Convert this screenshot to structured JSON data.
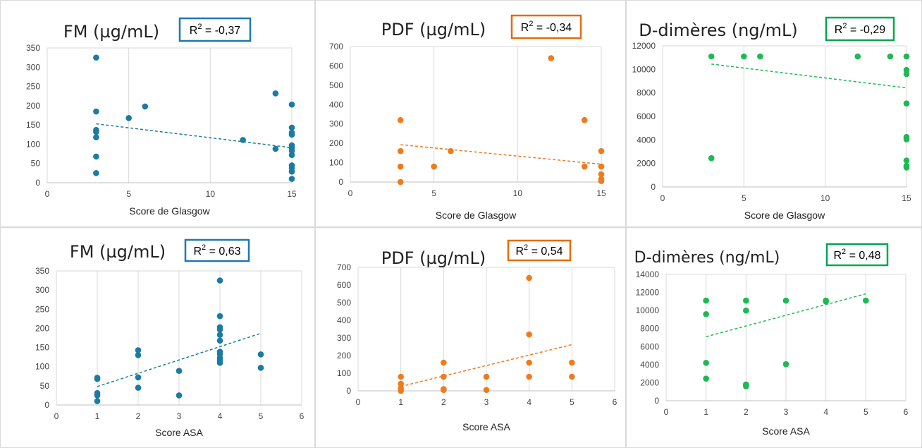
{
  "chart_data": [
    {
      "type": "scatter",
      "title": "FM (µg/mL)",
      "r2": {
        "base": "R",
        "sup": "2",
        "rest": " = -0,37",
        "color": "#1f77b4"
      },
      "xlabel": "Score de Glasgow",
      "ylabel": "",
      "xlim": [
        0,
        15
      ],
      "ylim": [
        0,
        350
      ],
      "xticks": [
        "0",
        "5",
        "10",
        "15"
      ],
      "yticks": [
        "0",
        "50",
        "100",
        "150",
        "200",
        "250",
        "300",
        "350"
      ],
      "gridlines": "vertical",
      "color": "#1a7ba3",
      "x": [
        3,
        3,
        3,
        3,
        3,
        3,
        3,
        5,
        6,
        12,
        14,
        14,
        15,
        15,
        15,
        15,
        15,
        15,
        15,
        15,
        15,
        15,
        15,
        15
      ],
      "y": [
        325,
        185,
        137,
        132,
        118,
        68,
        25,
        168,
        198,
        111,
        232,
        88,
        203,
        143,
        130,
        125,
        97,
        91,
        83,
        72,
        45,
        38,
        29,
        10
      ],
      "trendline": [
        [
          3,
          153
        ],
        [
          15,
          91
        ]
      ]
    },
    {
      "type": "scatter",
      "title": "PDF (µg/mL)",
      "r2": {
        "base": "R",
        "sup": "2",
        "rest": " = -0,34",
        "color": "#e46c0a"
      },
      "xlabel": "Score de Glasgow",
      "ylabel": "",
      "xlim": [
        0,
        15
      ],
      "ylim": [
        0,
        700
      ],
      "xticks": [
        "0",
        "5",
        "10",
        "15"
      ],
      "yticks": [
        "0",
        "100",
        "200",
        "300",
        "400",
        "500",
        "600",
        "700"
      ],
      "gridlines": "vertical",
      "color": "#f07a1c",
      "x": [
        3,
        3,
        3,
        3,
        5,
        6,
        12,
        14,
        14,
        15,
        15,
        15,
        15,
        15
      ],
      "y": [
        320,
        160,
        80,
        0,
        80,
        160,
        640,
        320,
        80,
        160,
        80,
        40,
        15,
        5
      ],
      "trendline": [
        [
          3,
          193
        ],
        [
          15,
          92
        ]
      ]
    },
    {
      "type": "scatter",
      "title": "D-dimères (ng/mL)",
      "r2": {
        "base": "R",
        "sup": "2",
        "rest": " = -0,29",
        "color": "#00a651"
      },
      "xlabel": "Score de Glasgow",
      "ylabel": "",
      "xlim": [
        0,
        15
      ],
      "ylim": [
        0,
        12000
      ],
      "xticks": [
        "0",
        "5",
        "10",
        "15"
      ],
      "yticks": [
        "0",
        "2000",
        "4000",
        "6000",
        "8000",
        "10000",
        "12000"
      ],
      "gridlines": "vertical",
      "color": "#1db954",
      "x": [
        3,
        3,
        5,
        6,
        12,
        14,
        15,
        15,
        15,
        15,
        15,
        15,
        15,
        15,
        15
      ],
      "y": [
        11100,
        2450,
        11100,
        11100,
        11100,
        11100,
        11100,
        9950,
        9600,
        7100,
        4250,
        4050,
        2250,
        1800,
        1650
      ],
      "trendline": [
        [
          3,
          10450
        ],
        [
          15,
          8430
        ]
      ]
    },
    {
      "type": "scatter",
      "title": "FM (µg/mL)",
      "r2": {
        "base": "R",
        "sup": "2",
        "rest": " = 0,63",
        "color": "#1f77b4"
      },
      "xlabel": "Score ASA",
      "ylabel": "",
      "xlim": [
        0,
        6
      ],
      "ylim": [
        0,
        350
      ],
      "xticks": [
        "0",
        "1",
        "2",
        "3",
        "4",
        "5",
        "6"
      ],
      "yticks": [
        "0",
        "50",
        "100",
        "150",
        "200",
        "250",
        "300",
        "350"
      ],
      "gridlines": "vertical",
      "color": "#1a7ba3",
      "x": [
        1,
        1,
        1,
        1,
        1,
        2,
        2,
        2,
        2,
        3,
        3,
        4,
        4,
        4,
        4,
        4,
        4,
        4,
        4,
        4,
        4,
        4,
        5,
        5
      ],
      "y": [
        71,
        68,
        31,
        25,
        10,
        143,
        130,
        72,
        45,
        89,
        25,
        325,
        232,
        203,
        197,
        183,
        168,
        139,
        133,
        123,
        117,
        110,
        132,
        97
      ],
      "trendline": [
        [
          1,
          48
        ],
        [
          5,
          187
        ]
      ]
    },
    {
      "type": "scatter",
      "title": "PDF (µg/mL)",
      "r2": {
        "base": "R",
        "sup": "2",
        "rest": " = 0,54",
        "color": "#e46c0a"
      },
      "xlabel": "Score ASA",
      "ylabel": "",
      "xlim": [
        0,
        6
      ],
      "ylim": [
        0,
        700
      ],
      "xticks": [
        "0",
        "1",
        "2",
        "3",
        "4",
        "5",
        "6"
      ],
      "yticks": [
        "0",
        "100",
        "200",
        "300",
        "400",
        "500",
        "600",
        "700"
      ],
      "gridlines": "vertical",
      "color": "#f07a1c",
      "x": [
        1,
        1,
        1,
        1,
        2,
        2,
        2,
        2,
        3,
        3,
        4,
        4,
        4,
        4,
        5,
        5
      ],
      "y": [
        80,
        40,
        15,
        0,
        160,
        80,
        10,
        5,
        80,
        5,
        640,
        320,
        160,
        80,
        160,
        80
      ],
      "trendline": [
        [
          1,
          25
        ],
        [
          5,
          262
        ]
      ]
    },
    {
      "type": "scatter",
      "title": "D-dimères (ng/mL)",
      "r2": {
        "base": "R",
        "sup": "2",
        "rest": " = 0,48",
        "color": "#00a651"
      },
      "xlabel": "Score ASA",
      "ylabel": "",
      "xlim": [
        0,
        6
      ],
      "ylim": [
        0,
        14000
      ],
      "xticks": [
        "0",
        "1",
        "2",
        "3",
        "4",
        "5",
        "6"
      ],
      "yticks": [
        "0",
        "2000",
        "4000",
        "6000",
        "8000",
        "10000",
        "12000",
        "14000"
      ],
      "gridlines": "vertical",
      "color": "#1db954",
      "x": [
        1,
        1,
        1,
        1,
        2,
        2,
        2,
        2,
        3,
        3,
        4,
        4,
        5
      ],
      "y": [
        11100,
        9600,
        4200,
        2450,
        11100,
        10000,
        1800,
        1600,
        11100,
        4050,
        11100,
        11000,
        11100
      ],
      "trendline": [
        [
          1,
          7100
        ],
        [
          5,
          11850
        ]
      ]
    }
  ]
}
